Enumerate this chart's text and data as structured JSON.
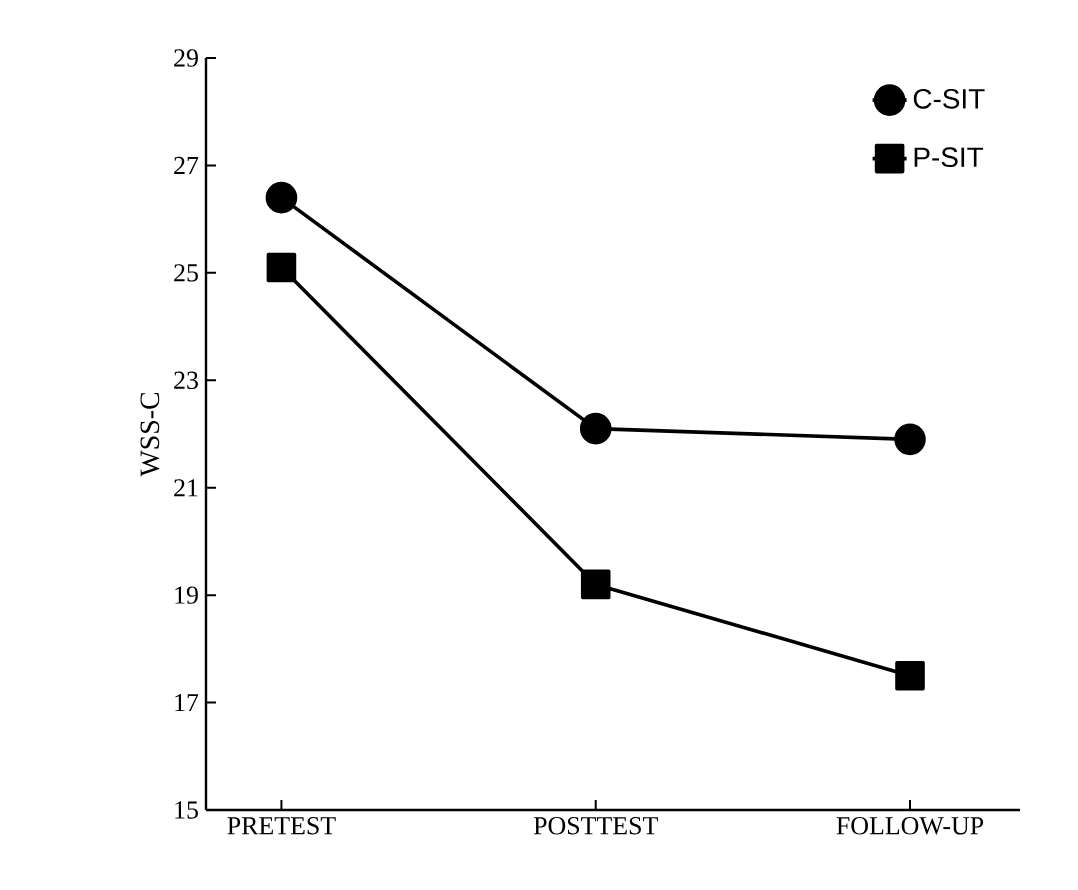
{
  "chart_data": {
    "type": "line",
    "ylabel": "WSS-C",
    "categories": [
      "PRETEST",
      "POSTTEST",
      "FOLLOW-UP"
    ],
    "series": [
      {
        "name": "C-SIT",
        "color": "#000000",
        "marker": "circle",
        "values": [
          26.4,
          22.1,
          21.9
        ]
      },
      {
        "name": "P-SIT",
        "color": "#000000",
        "marker": "square",
        "values": [
          25.1,
          19.2,
          17.5
        ]
      }
    ],
    "ylim": [
      15,
      29
    ],
    "yticks": [
      15,
      17,
      19,
      21,
      23,
      25,
      27,
      29
    ],
    "legend": "top right",
    "grid": false,
    "line_style": "solid"
  }
}
